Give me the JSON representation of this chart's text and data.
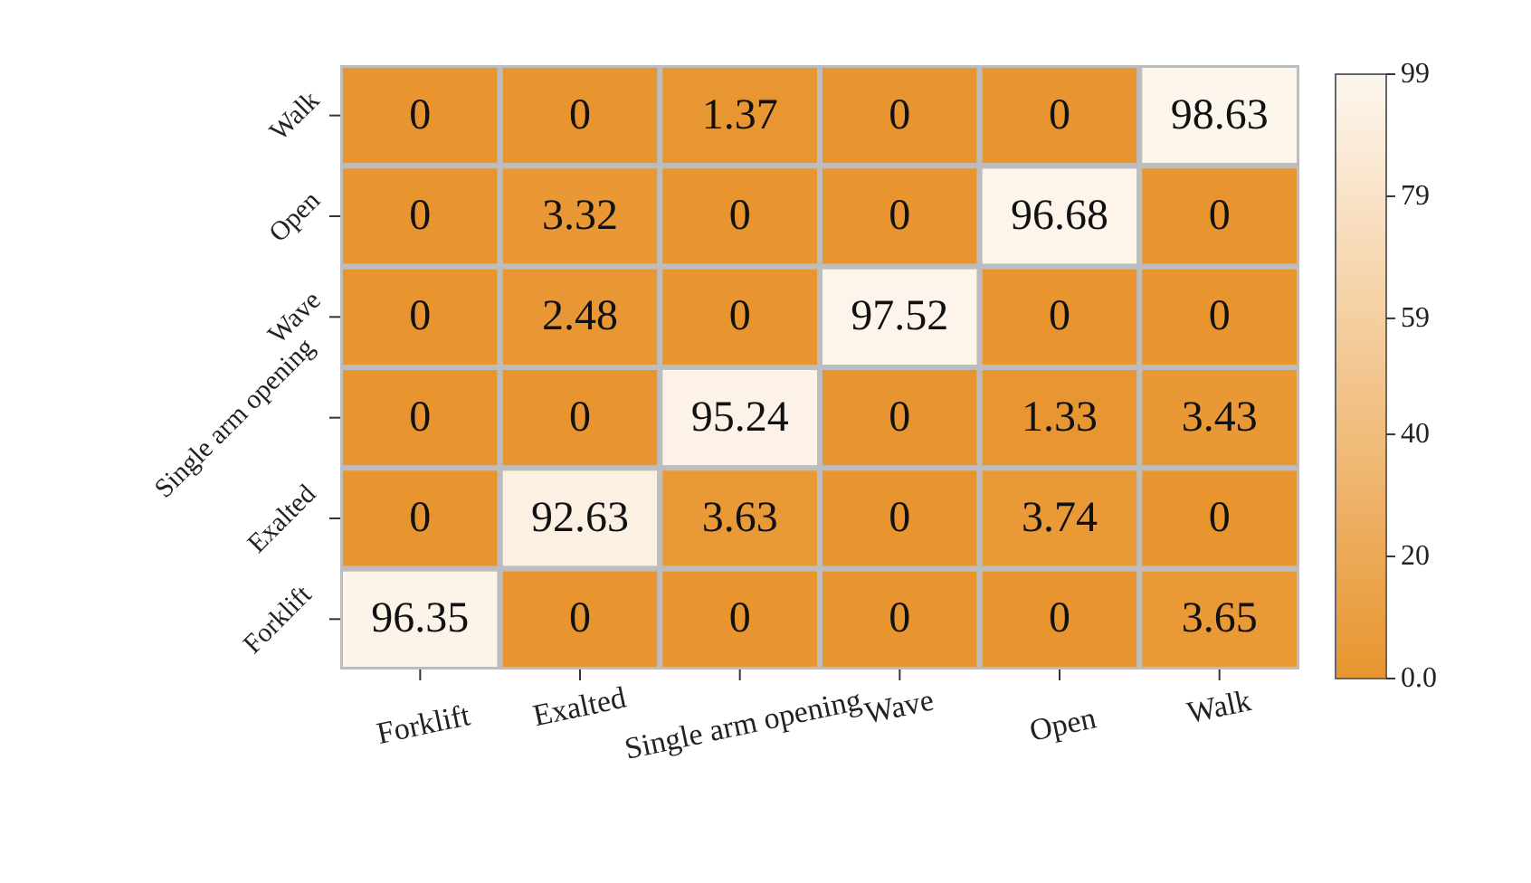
{
  "chart_data": {
    "type": "heatmap",
    "categories": [
      "Forklift",
      "Exalted",
      "Single arm opening",
      "Wave",
      "Open",
      "Walk"
    ],
    "y_categories": [
      "Walk",
      "Open",
      "Wave",
      "Single arm opening",
      "Exalted",
      "Forklift"
    ],
    "cells": [
      [
        0,
        0,
        1.37,
        0,
        0,
        98.63
      ],
      [
        0,
        3.32,
        0,
        0,
        96.68,
        0
      ],
      [
        0,
        2.48,
        0,
        97.52,
        0,
        0
      ],
      [
        0,
        0,
        95.24,
        0,
        1.33,
        3.43
      ],
      [
        0,
        92.63,
        3.63,
        0,
        3.74,
        0
      ],
      [
        96.35,
        0,
        0,
        0,
        0,
        3.65
      ]
    ],
    "data_labels": true,
    "clim": [
      0,
      99
    ],
    "cticks": [
      {
        "value": 0,
        "label": "0.0"
      },
      20,
      40,
      59,
      79,
      99
    ]
  }
}
